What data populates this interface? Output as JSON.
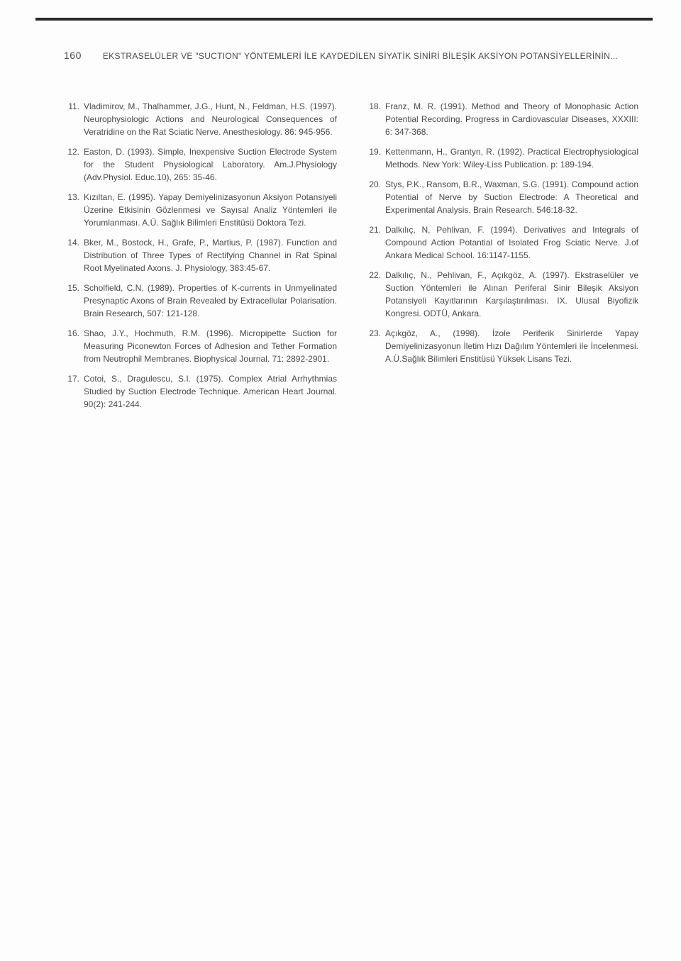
{
  "page_number": "160",
  "running_title": "EKSTRASELÜLER VE \"SUCTION\" YÖNTEMLERİ İLE KAYDEDİLEN SİYATİK SİNİRİ BİLEŞİK AKSİYON POTANSİYELLERİNİN...",
  "left_column": [
    {
      "num": "11.",
      "text": "Vladimirov, M., Thalhammer, J.G., Hunt, N., Feldman, H.S. (1997). Neurophysiologic Actions and Neurological Consequences of Veratridine on the Rat Sciatic Nerve. Anesthesiology. 86: 945-956."
    },
    {
      "num": "12.",
      "text": "Easton, D. (1993). Simple, Inexpensive Suction Electrode System for the Student Physiological Laboratory. Am.J.Physiology (Adv.Physiol. Educ.10), 265: 35-46."
    },
    {
      "num": "13.",
      "text": "Kızıltan, E. (1995). Yapay Demiyelinizasyonun Aksiyon Potansiyeli Üzerine Etkisinin Gözlenmesi ve Sayısal Analiz Yöntemleri ile Yorumlanması. A.Ü. Sağlık Bilimleri Enstitüsü Doktora Tezi."
    },
    {
      "num": "14.",
      "text": "Bker, M., Bostock, H., Grafe, P., Martius, P. (1987). Function and Distribution of Three Types of Rectifying Channel in Rat Spinal Root Myelinated Axons. J. Physiology, 383:45-67."
    },
    {
      "num": "15.",
      "text": "Scholfield, C.N. (1989). Properties of K-currents in Unmyelinated Presynaptic Axons of Brain Revealed by Extracellular Polarisation. Brain Research, 507: 121-128."
    },
    {
      "num": "16.",
      "text": "Shao, J.Y., Hochmuth, R.M. (1996). Micropipette Suction for Measuring Piconewton Forces of Adhesion and Tether Formation from Neutrophil Membranes. Biophysical Journal. 71: 2892-2901."
    },
    {
      "num": "17.",
      "text": "Cotoi, S., Dragulescu, S.I. (1975). Complex Atrial Arrhythmias Studied by Suction Electrode Technique. American Heart Journal. 90(2): 241-244."
    }
  ],
  "right_column": [
    {
      "num": "18.",
      "text": "Franz, M. R. (1991). Method and Theory of Monophasic Action Potential Recording. Progress in Cardiovascular Diseases, XXXIII: 6: 347-368."
    },
    {
      "num": "19.",
      "text": "Kettenmann, H., Grantyn, R. (1992). Practical Electrophysiological Methods. New York: Wiley-Liss Publication. p: 189-194."
    },
    {
      "num": "20.",
      "text": "Stys, P.K., Ransom, B.R., Waxman, S.G. (1991). Compound action Potential of Nerve by Suction Electrode: A Theoretical and Experimental Analysis. Brain Research. 546:18-32."
    },
    {
      "num": "21.",
      "text": "Dalkılıç, N, Pehlivan, F. (1994). Derivatives and Integrals of Compound Action Potantial of Isolated Frog Sciatic Nerve. J.of Ankara Medical School. 16:1147-1155."
    },
    {
      "num": "22.",
      "text": "Dalkılıç, N., Pehlivan, F., Açıkgöz, A. (1997). Ekstraselüler ve Suction Yöntemleri ile Alınan Periferal Sinir Bileşik Aksiyon Potansiyeli Kayıtlarının Karşılaştırılması. IX. Ulusal Biyofizik Kongresi. ODTÜ, Ankara."
    },
    {
      "num": "23.",
      "text": "Açıkgöz, A., (1998). İzole Periferik Sinirlerde Yapay Demiyelinizasyonun İletim Hızı Dağılım Yöntemleri ile İncelenmesi. A.Ü.Sağlık Bilimleri Enstitüsü Yüksek Lisans Tezi."
    }
  ]
}
